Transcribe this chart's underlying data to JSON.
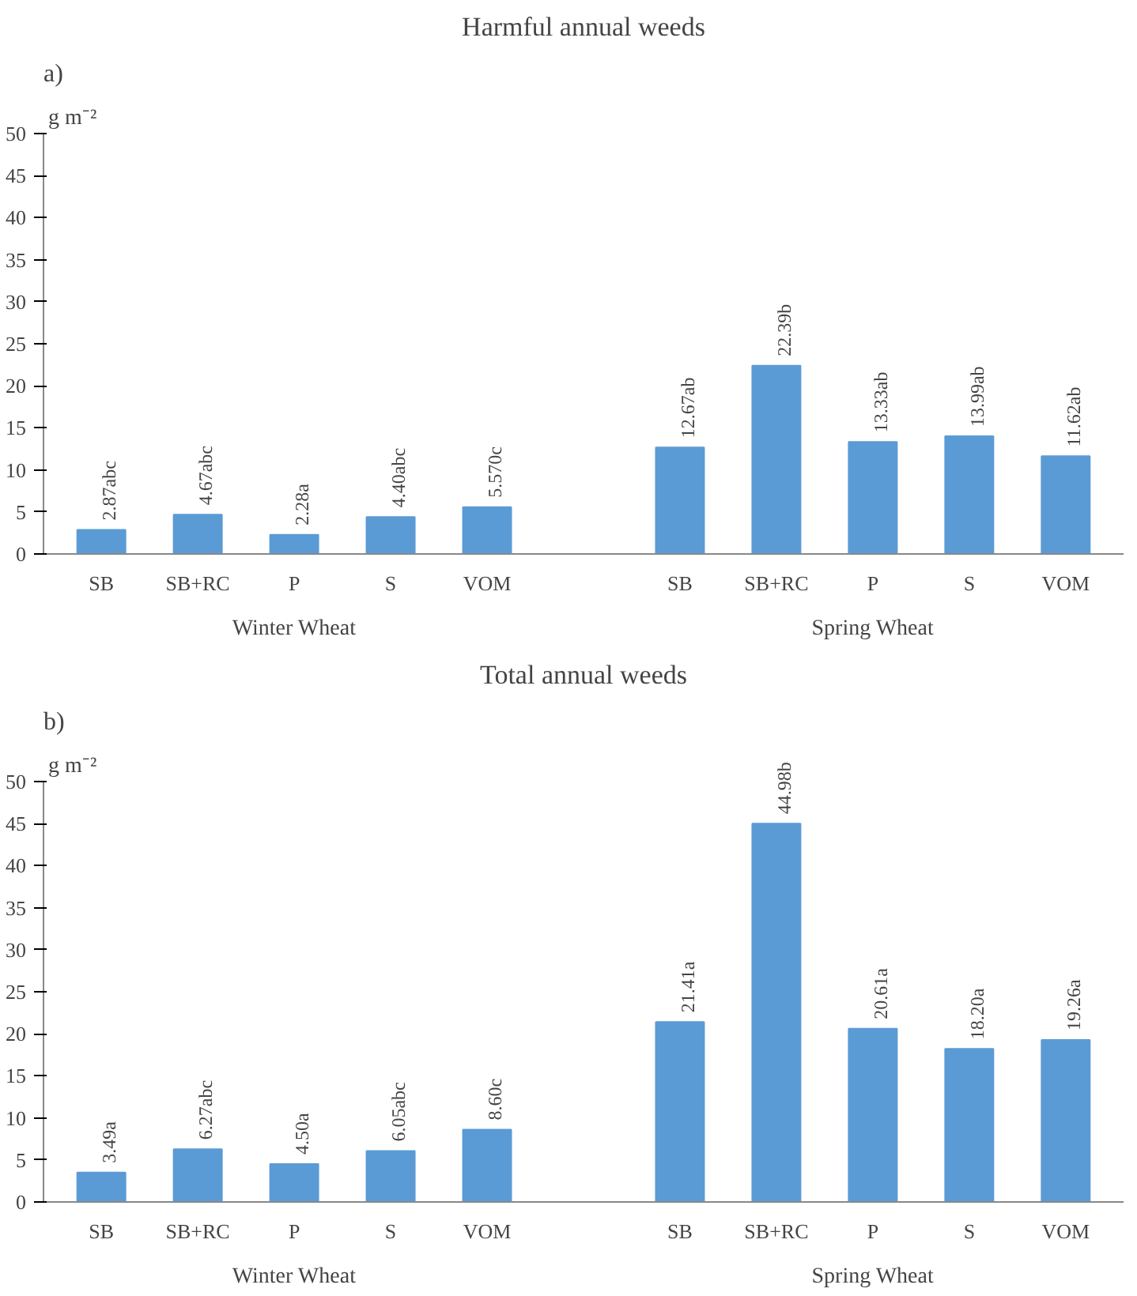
{
  "chart_data": [
    {
      "type": "bar",
      "title": "Harmful annual weeds",
      "ylabel": "g m⁻²",
      "annotations": [
        "a)",
        "Winter Wheat",
        "Spring Wheat"
      ],
      "categories": [
        "SB",
        "SB+RC",
        "P",
        "S",
        "VOM",
        null,
        "SB",
        "SB+RC",
        "P",
        "S",
        "VOM"
      ],
      "values": [
        2.87,
        4.67,
        2.28,
        4.4,
        5.57,
        null,
        12.67,
        22.39,
        13.33,
        13.99,
        11.62
      ],
      "value_labels": [
        "2.87abc",
        "4.67abc",
        "2.28a",
        "4.40abc",
        "5.570c",
        null,
        "12.67ab",
        "22.39b",
        "13.33ab",
        "13.99ab",
        "11.62ab"
      ],
      "color": "#5b9bd5",
      "ylim": [
        0,
        50
      ],
      "yticks": [
        0,
        5,
        10,
        15,
        20,
        25,
        30,
        35,
        40,
        45,
        50
      ],
      "grid": false
    },
    {
      "type": "bar",
      "title": "Total annual weeds",
      "ylabel": "g m⁻²",
      "annotations": [
        "b)",
        "Winter Wheat",
        "Spring Wheat"
      ],
      "categories": [
        "SB",
        "SB+RC",
        "P",
        "S",
        "VOM",
        null,
        "SB",
        "SB+RC",
        "P",
        "S",
        "VOM"
      ],
      "values": [
        3.49,
        6.27,
        4.5,
        6.05,
        8.6,
        null,
        21.41,
        44.98,
        20.61,
        18.2,
        19.26
      ],
      "value_labels": [
        "3.49a",
        "6.27abc",
        "4.50a",
        "6.05abc",
        "8.60c",
        null,
        "21.41a",
        "44.98b",
        "20.61a",
        "18.20a",
        "19.26a"
      ],
      "color": "#5b9bd5",
      "ylim": [
        0,
        50
      ],
      "yticks": [
        0,
        5,
        10,
        15,
        20,
        25,
        30,
        35,
        40,
        45,
        50
      ],
      "grid": false
    }
  ]
}
